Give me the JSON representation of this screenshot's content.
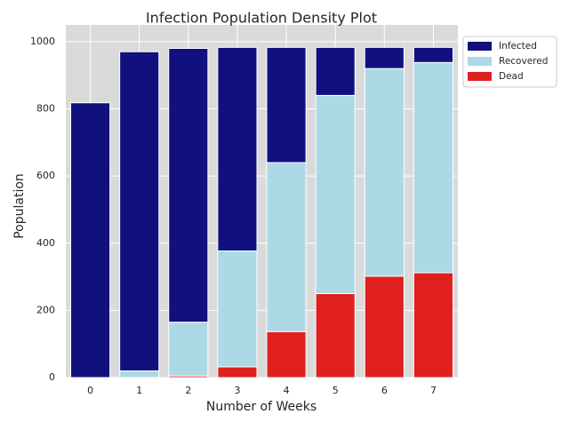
{
  "chart_data": {
    "type": "stacked-bar",
    "title": "Infection Population Density Plot",
    "x_label": "Number of Weeks",
    "y_label": "Population",
    "categories": [
      "0",
      "1",
      "2",
      "3",
      "4",
      "5",
      "6",
      "7"
    ],
    "series": [
      {
        "name": "Infected",
        "color": "#10107f",
        "values": [
          818,
          950,
          815,
          606,
          343,
          143,
          63,
          45
        ]
      },
      {
        "name": "Recovered",
        "color": "#add8e6",
        "values": [
          0,
          20,
          160,
          345,
          503,
          590,
          618,
          626
        ]
      },
      {
        "name": "Dead",
        "color": "#e01f1f",
        "values": [
          0,
          0,
          5,
          32,
          137,
          250,
          302,
          312
        ]
      }
    ],
    "stack_order": [
      "Dead",
      "Recovered",
      "Infected"
    ],
    "ylim": [
      0,
      1050
    ],
    "yticks": [
      0,
      200,
      400,
      600,
      800,
      1000
    ],
    "grid": true,
    "legend": "upper right outside"
  }
}
